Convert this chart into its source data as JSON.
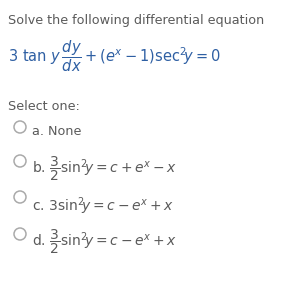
{
  "title": "Solve the following differential equation",
  "select_one": "Select one:",
  "bg_color": "#ffffff",
  "text_color": "#5a5a5a",
  "eq_color": "#2e5fa3",
  "option_label_color": "#5a5a5a",
  "circle_color": "#aaaaaa",
  "title_fontsize": 9.2,
  "body_fontsize": 9.2,
  "eq_fontsize": 10.5,
  "opt_fontsize": 10.0
}
